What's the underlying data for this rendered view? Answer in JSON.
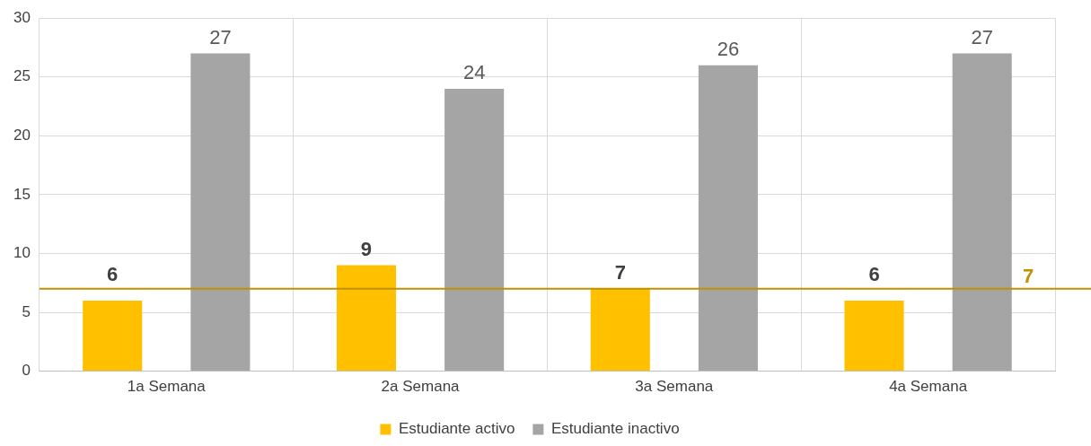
{
  "chart_data": {
    "type": "bar",
    "categories": [
      "1a Semana",
      "2a Semana",
      "3a Semana",
      "4a Semana"
    ],
    "series": [
      {
        "name": "Estudiante activo",
        "color": "#ffc000",
        "values": [
          6,
          9,
          7,
          6
        ]
      },
      {
        "name": "Estudiante inactivo",
        "color": "#a5a5a5",
        "values": [
          27,
          24,
          26,
          27
        ]
      }
    ],
    "ylim": [
      0,
      30
    ],
    "yticks": [
      0,
      5,
      10,
      15,
      20,
      25,
      30
    ],
    "grid": true,
    "legend": "bottom",
    "data_labels": true,
    "ref_lines": [
      {
        "axis": "y",
        "value": 7,
        "label": "7",
        "color": "#bf9000"
      }
    ]
  }
}
